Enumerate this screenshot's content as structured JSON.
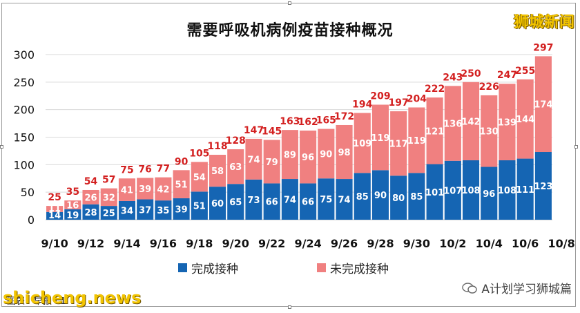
{
  "header": {
    "title": "需要呼吸机病例疫苗接种概况",
    "brand": "狮城新闻"
  },
  "footer": {
    "caption": "图表：早报 · 1",
    "watermark": "shicheng.news",
    "wechat_label": "A计划学习狮城篇"
  },
  "colors": {
    "completed": "#1565b3",
    "incomplete": "#f08080",
    "total_label": "#d32020",
    "inner_label": "#ffffff",
    "axis_text": "#111111",
    "grid": "#d9d9d9"
  },
  "chart_data": {
    "type": "bar",
    "stacked": true,
    "title": "需要呼吸机病例疫苗接种概况",
    "xlabel": "",
    "ylabel": "",
    "ylim": [
      0,
      300
    ],
    "yticks": [
      0,
      50,
      100,
      150,
      200,
      250,
      300
    ],
    "grid": true,
    "legend_position": "bottom",
    "x_tick_labels": [
      "9/10",
      "9/12",
      "9/14",
      "9/16",
      "9/18",
      "9/20",
      "9/22",
      "9/24",
      "9/26",
      "9/28",
      "9/30",
      "10/2",
      "10/4",
      "10/6",
      "10/8"
    ],
    "categories": [
      "9/10",
      "9/11",
      "9/12",
      "9/13",
      "9/14",
      "9/15",
      "9/16",
      "9/17",
      "9/18",
      "9/19",
      "9/20",
      "9/21",
      "9/22",
      "9/23",
      "9/24",
      "9/25",
      "9/26",
      "9/27",
      "9/28",
      "9/29",
      "9/30",
      "10/1",
      "10/2",
      "10/3",
      "10/4",
      "10/5",
      "10/6",
      "10/7"
    ],
    "series": [
      {
        "name": "完成接种",
        "values": [
          14,
          19,
          28,
          25,
          34,
          37,
          35,
          39,
          51,
          60,
          65,
          73,
          66,
          74,
          66,
          75,
          74,
          85,
          90,
          80,
          85,
          101,
          107,
          108,
          96,
          108,
          111,
          123
        ]
      },
      {
        "name": "未完成接种",
        "values": [
          11,
          16,
          26,
          32,
          41,
          39,
          42,
          51,
          54,
          58,
          63,
          74,
          79,
          89,
          96,
          90,
          98,
          109,
          119,
          117,
          119,
          121,
          136,
          142,
          130,
          139,
          144,
          174
        ]
      }
    ],
    "totals": [
      25,
      35,
      54,
      57,
      75,
      76,
      77,
      90,
      105,
      118,
      128,
      147,
      145,
      163,
      162,
      165,
      172,
      194,
      209,
      197,
      204,
      222,
      243,
      250,
      226,
      247,
      255,
      297
    ]
  }
}
